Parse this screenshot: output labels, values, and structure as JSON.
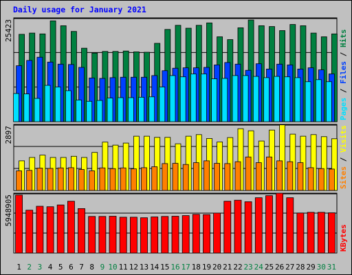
{
  "title": "Daily usage for January 2021",
  "colors": {
    "hits": "#008040",
    "files": "#0040ff",
    "pages": "#00e0ff",
    "visits": "#ffff00",
    "sites": "#ff8000",
    "kbytes": "#ff0000",
    "weekday_label": "#000000",
    "weekend_label": "#008040",
    "background": "#c0c0c0"
  },
  "chart_data": [
    {
      "type": "bar",
      "panel": "hits-files-pages",
      "y_max_label": "25423",
      "y_max": 25423,
      "categories": [
        "1",
        "2",
        "3",
        "4",
        "5",
        "6",
        "7",
        "8",
        "9",
        "10",
        "11",
        "12",
        "13",
        "14",
        "15",
        "16",
        "17",
        "18",
        "19",
        "20",
        "21",
        "22",
        "23",
        "24",
        "25",
        "26",
        "27",
        "28",
        "29",
        "30",
        "31"
      ],
      "weekend": [
        false,
        true,
        true,
        false,
        false,
        false,
        false,
        false,
        true,
        true,
        false,
        false,
        false,
        false,
        false,
        true,
        true,
        false,
        false,
        false,
        false,
        false,
        true,
        true,
        false,
        false,
        false,
        false,
        false,
        true,
        true
      ],
      "series": [
        {
          "name": "Hits",
          "color_key": "hits",
          "values": [
            21400,
            21700,
            21500,
            24700,
            23500,
            22100,
            18000,
            16800,
            17200,
            17200,
            17300,
            17100,
            17000,
            19200,
            22600,
            23600,
            22900,
            23600,
            24200,
            20800,
            20100,
            23000,
            24900,
            23500,
            23300,
            22300,
            23800,
            23500,
            21700,
            20800,
            21500
          ]
        },
        {
          "name": "Files",
          "color_key": "files",
          "values": [
            13700,
            15000,
            15800,
            14600,
            14100,
            14000,
            13300,
            10700,
            10600,
            10800,
            10900,
            10900,
            10900,
            11300,
            12500,
            13100,
            13200,
            13200,
            13300,
            13900,
            14500,
            14100,
            12600,
            14200,
            12900,
            14100,
            13900,
            12900,
            13200,
            12700,
            11700
          ]
        },
        {
          "name": "Pages",
          "color_key": "pages",
          "values": [
            6900,
            6800,
            5700,
            8900,
            8500,
            7600,
            5300,
            5000,
            5200,
            5800,
            5900,
            5900,
            6000,
            6100,
            8500,
            11300,
            11000,
            11700,
            11700,
            10500,
            10600,
            11300,
            11300,
            11100,
            10800,
            11100,
            11000,
            10800,
            9800,
            10300,
            9800
          ]
        }
      ]
    },
    {
      "type": "bar",
      "panel": "visits-sites",
      "y_max_label": "2897",
      "y_max": 2897,
      "categories": [
        "1",
        "2",
        "3",
        "4",
        "5",
        "6",
        "7",
        "8",
        "9",
        "10",
        "11",
        "12",
        "13",
        "14",
        "15",
        "16",
        "17",
        "18",
        "19",
        "20",
        "21",
        "22",
        "23",
        "24",
        "25",
        "26",
        "27",
        "28",
        "29",
        "30",
        "31"
      ],
      "series": [
        {
          "name": "Visits",
          "color_key": "visits",
          "values": [
            1300,
            1450,
            1550,
            1450,
            1450,
            1500,
            1450,
            1670,
            2120,
            1990,
            2080,
            2380,
            2380,
            2330,
            2330,
            2050,
            2380,
            2450,
            2280,
            2130,
            2320,
            2710,
            2620,
            2170,
            2650,
            2880,
            2470,
            2380,
            2450,
            2360,
            2270
          ]
        },
        {
          "name": "Sites",
          "color_key": "sites",
          "values": [
            860,
            880,
            980,
            970,
            990,
            1000,
            920,
            860,
            990,
            960,
            990,
            950,
            1000,
            1040,
            1180,
            1190,
            1140,
            1220,
            1300,
            1190,
            1180,
            1260,
            1470,
            1220,
            1470,
            1300,
            1260,
            1220,
            1000,
            960,
            940
          ]
        }
      ]
    },
    {
      "type": "bar",
      "panel": "kbytes",
      "y_max_label": "5948905",
      "y_max": 5948905,
      "categories": [
        "1",
        "2",
        "3",
        "4",
        "5",
        "6",
        "7",
        "8",
        "9",
        "10",
        "11",
        "12",
        "13",
        "14",
        "15",
        "16",
        "17",
        "18",
        "19",
        "20",
        "21",
        "22",
        "23",
        "24",
        "25",
        "26",
        "27",
        "28",
        "29",
        "30",
        "31"
      ],
      "series": [
        {
          "name": "KBytes",
          "color_key": "kbytes",
          "values": [
            5760000,
            4260000,
            4650000,
            4600000,
            4780000,
            5150000,
            4420000,
            3640000,
            3640000,
            3660000,
            3560000,
            3560000,
            3510000,
            3590000,
            3640000,
            3660000,
            3720000,
            3840000,
            3820000,
            3970000,
            5150000,
            5250000,
            5100000,
            5500000,
            5700000,
            5950000,
            5500000,
            3980000,
            4050000,
            4050000,
            4000000
          ]
        }
      ]
    }
  ],
  "legend": {
    "top": [
      {
        "text": "Pages",
        "color_key": "pages"
      },
      {
        "text": " / ",
        "color_key": "weekday_label"
      },
      {
        "text": "Files",
        "color_key": "files"
      },
      {
        "text": " / ",
        "color_key": "weekday_label"
      },
      {
        "text": "Hits",
        "color_key": "hits"
      }
    ],
    "middle": [
      {
        "text": "Sites",
        "color_key": "sites"
      },
      {
        "text": " / ",
        "color_key": "weekday_label"
      },
      {
        "text": "Visits",
        "color_key": "visits"
      }
    ],
    "bottom": [
      {
        "text": "KBytes",
        "color_key": "kbytes"
      }
    ]
  }
}
